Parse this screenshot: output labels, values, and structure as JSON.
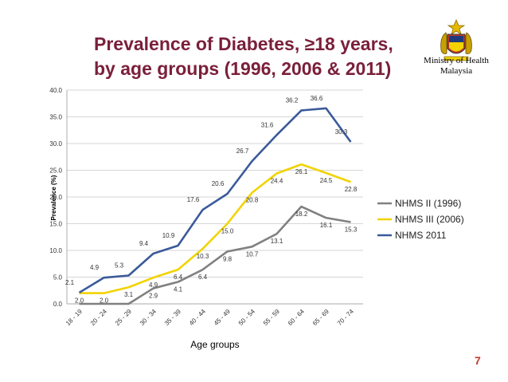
{
  "slide": {
    "title_line1": "Prevalence of Diabetes, ≥18 years,",
    "title_line2": "by age groups (1996, 2006 & 2011)",
    "ministry_line1": "Ministry of Health",
    "ministry_line2": "Malaysia",
    "page_number": "7",
    "logo_icon": "malaysia-coat-of-arms-icon",
    "title_color": "#7a1f3a"
  },
  "chart_data": {
    "type": "line",
    "title": "Prevalence of Diabetes, ≥18 years, by age groups (1996, 2006 & 2011)",
    "xlabel": "Age groups",
    "ylabel": "Prevalence (%)",
    "ylim": [
      0,
      40
    ],
    "yticks": [
      "0.0",
      "5.0",
      "10.0",
      "15.0",
      "20.0",
      "25.0",
      "30.0",
      "35.0",
      "40.0"
    ],
    "grid": true,
    "legend_position": "right",
    "categories": [
      "18 - 19",
      "20 - 24",
      "25 - 29",
      "30 - 34",
      "35 - 39",
      "40 - 44",
      "45 - 49",
      "50 - 54",
      "55 - 59",
      "60 - 64",
      "65 - 69",
      "70 - 74"
    ],
    "series": [
      {
        "name": "NHMS II (1996)",
        "color": "#808080",
        "values": [
          0.0,
          0.0,
          0.0,
          2.9,
          4.1,
          6.4,
          9.8,
          10.7,
          13.1,
          18.2,
          16.1,
          15.3
        ],
        "labels": [
          "",
          "",
          "",
          "2.9",
          "4.1",
          "6.4",
          "9.8",
          "10.7",
          "13.1",
          "18.2",
          "16.1",
          "15.3"
        ]
      },
      {
        "name": "NHMS III (2006)",
        "color": "#f2d300",
        "values": [
          2.0,
          2.0,
          3.1,
          4.9,
          6.4,
          10.3,
          15.0,
          20.8,
          24.4,
          26.1,
          24.5,
          22.8
        ],
        "labels": [
          "2.0",
          "2.0",
          "3.1",
          "4.9",
          "6.4",
          "10.3",
          "15.0",
          "20.8",
          "24.4",
          "26.1",
          "24.5",
          "22.8"
        ]
      },
      {
        "name": "NHMS 2011",
        "color": "#3a5a9a",
        "values": [
          2.1,
          4.9,
          5.3,
          9.4,
          10.9,
          17.6,
          20.6,
          26.7,
          31.6,
          36.2,
          36.6,
          30.3
        ],
        "labels": [
          "2.1",
          "4.9",
          "5.3",
          "9.4",
          "10.9",
          "17.6",
          "20.6",
          "26.7",
          "31.6",
          "36.2",
          "36.6",
          "30.3"
        ]
      }
    ]
  }
}
